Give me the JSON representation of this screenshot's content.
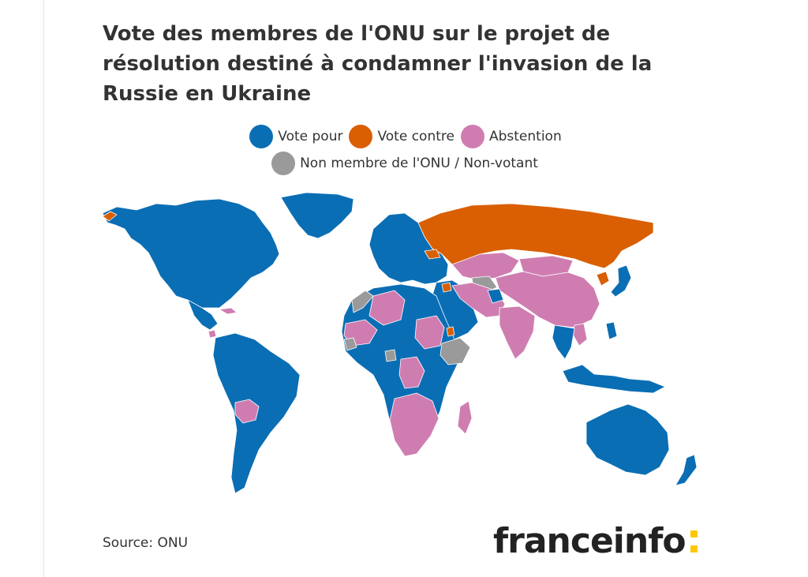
{
  "title": "Vote des membres de l'ONU sur le projet de résolution destiné à condamner l'invasion de la Russie en Ukraine",
  "legend": [
    {
      "label": "Vote pour",
      "color": "#0a6eb4"
    },
    {
      "label": "Vote contre",
      "color": "#d95f02"
    },
    {
      "label": "Abstention",
      "color": "#cf7db1"
    },
    {
      "label": "Non membre de l'ONU / Non-votant",
      "color": "#9a9a9a"
    }
  ],
  "colors": {
    "vote_pour": "#0a6eb4",
    "vote_contre": "#d95f02",
    "abstention": "#cf7db1",
    "non_membre": "#9a9a9a",
    "borders": "#ffffff",
    "logo_accent": "#ffc800"
  },
  "map": {
    "projection": "world",
    "regions": [
      {
        "id": "north-america",
        "vote": "vote_pour"
      },
      {
        "id": "central-america-caribbean",
        "vote": "vote_pour"
      },
      {
        "id": "south-america",
        "vote": "vote_pour"
      },
      {
        "id": "bolivia",
        "vote": "abstention"
      },
      {
        "id": "greenland",
        "vote": "vote_pour"
      },
      {
        "id": "europe",
        "vote": "vote_pour"
      },
      {
        "id": "russia",
        "vote": "vote_contre"
      },
      {
        "id": "belarus",
        "vote": "vote_contre"
      },
      {
        "id": "syria",
        "vote": "vote_contre"
      },
      {
        "id": "eritrea",
        "vote": "vote_contre"
      },
      {
        "id": "north-korea",
        "vote": "vote_contre"
      },
      {
        "id": "cuba",
        "vote": "abstention"
      },
      {
        "id": "nicaragua",
        "vote": "abstention"
      },
      {
        "id": "china",
        "vote": "abstention"
      },
      {
        "id": "kazakhstan-central-asia",
        "vote": "abstention"
      },
      {
        "id": "mongolia",
        "vote": "abstention"
      },
      {
        "id": "india",
        "vote": "abstention"
      },
      {
        "id": "iran-iraq-pakistan",
        "vote": "abstention"
      },
      {
        "id": "vietnam-laos",
        "vote": "abstention"
      },
      {
        "id": "algeria",
        "vote": "abstention"
      },
      {
        "id": "mali-senegal",
        "vote": "abstention"
      },
      {
        "id": "sudan",
        "vote": "abstention"
      },
      {
        "id": "southern-africa",
        "vote": "abstention"
      },
      {
        "id": "madagascar",
        "vote": "abstention"
      },
      {
        "id": "central-africa",
        "vote": "abstention"
      },
      {
        "id": "morocco",
        "vote": "non_membre"
      },
      {
        "id": "ethiopia",
        "vote": "non_membre"
      },
      {
        "id": "burkina-guinea",
        "vote": "non_membre"
      },
      {
        "id": "turkmenistan-uzbekistan",
        "vote": "non_membre"
      },
      {
        "id": "cameroon",
        "vote": "non_membre"
      },
      {
        "id": "africa-other",
        "vote": "vote_pour"
      },
      {
        "id": "middle-east",
        "vote": "vote_pour"
      },
      {
        "id": "afghanistan",
        "vote": "vote_pour"
      },
      {
        "id": "southeast-asia",
        "vote": "vote_pour"
      },
      {
        "id": "japan-korea",
        "vote": "vote_pour"
      },
      {
        "id": "indonesia-png",
        "vote": "vote_pour"
      },
      {
        "id": "australia-nz",
        "vote": "vote_pour"
      }
    ]
  },
  "source": "Source: ONU",
  "logo": {
    "text": "franceinfo"
  }
}
